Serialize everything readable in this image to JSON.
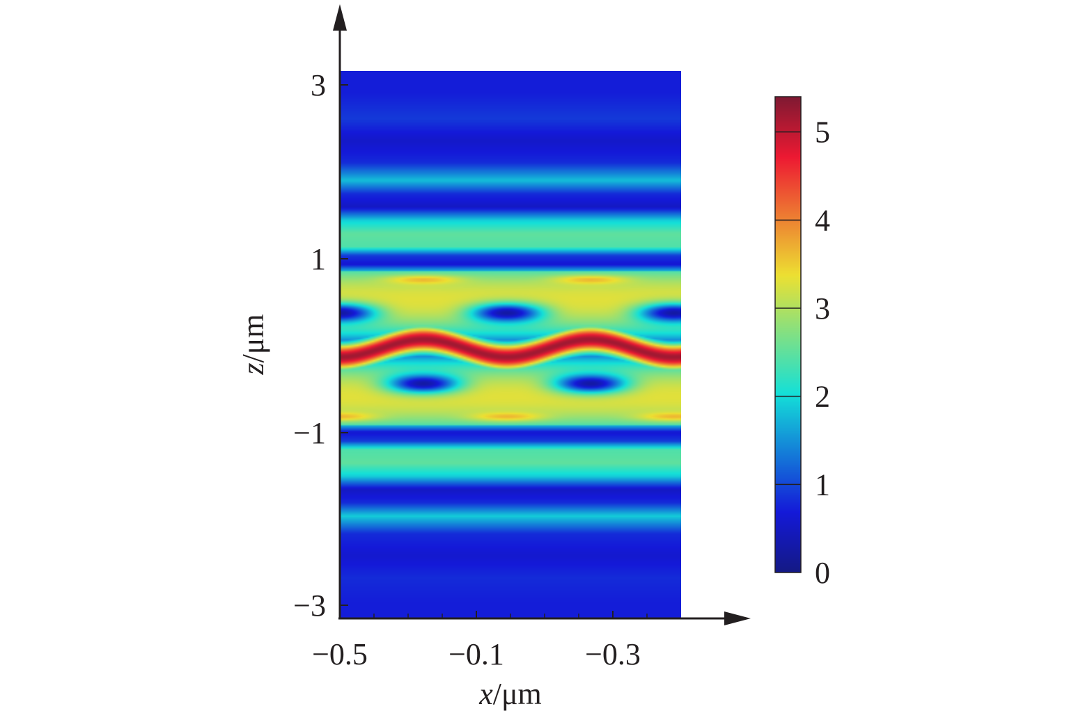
{
  "chart_data": {
    "type": "heatmap",
    "title": "",
    "xlabel": {
      "variable": "x",
      "unit": "/μm"
    },
    "ylabel": {
      "variable": "z",
      "unit": "/μm"
    },
    "x_ticks": [
      {
        "value": 0,
        "label": "−0.5"
      },
      {
        "value": 1,
        "label": "−0.1"
      },
      {
        "value": 2,
        "label": "−0.3"
      }
    ],
    "x_range": [
      0,
      2.5
    ],
    "y_ticks": [
      {
        "value": 3,
        "label": "3"
      },
      {
        "value": 1,
        "label": "1"
      },
      {
        "value": -1,
        "label": "−1"
      },
      {
        "value": -3,
        "label": "−3"
      }
    ],
    "y_range": [
      -3.06,
      3.14
    ],
    "colorbar": {
      "range": [
        0,
        5.4
      ],
      "ticks": [
        {
          "value": 0,
          "label": "0"
        },
        {
          "value": 1,
          "label": "1"
        },
        {
          "value": 2,
          "label": "2"
        },
        {
          "value": 3,
          "label": "3"
        },
        {
          "value": 4,
          "label": "4"
        },
        {
          "value": 5,
          "label": "5"
        }
      ],
      "colormap": "jet"
    },
    "field_description": "Intensity is uniform along x outside |z|<0.9 (horizontal bands) and periodic along x inside (high-intensity undulating core near z=0 with low-intensity lobes above and below).",
    "z_profile_uniform": [
      {
        "z": 3.14,
        "v": 0.7
      },
      {
        "z": 2.9,
        "v": 0.7
      },
      {
        "z": 2.6,
        "v": 0.9
      },
      {
        "z": 2.35,
        "v": 0.55
      },
      {
        "z": 2.1,
        "v": 0.8
      },
      {
        "z": 1.9,
        "v": 1.8
      },
      {
        "z": 1.75,
        "v": 0.8
      },
      {
        "z": 1.6,
        "v": 0.5
      },
      {
        "z": 1.45,
        "v": 1.9
      },
      {
        "z": 1.3,
        "v": 2.5
      },
      {
        "z": 1.15,
        "v": 2.4
      },
      {
        "z": 1.05,
        "v": 0.9
      },
      {
        "z": 0.95,
        "v": 0.6
      },
      {
        "z": 0.87,
        "v": 1.8
      },
      {
        "z": 0.87,
        "v": 1.8
      },
      {
        "z": -0.87,
        "v": 1.8
      },
      {
        "z": -0.95,
        "v": 0.6
      },
      {
        "z": -1.05,
        "v": 0.9
      },
      {
        "z": -1.15,
        "v": 2.4
      },
      {
        "z": -1.3,
        "v": 2.5
      },
      {
        "z": -1.45,
        "v": 1.9
      },
      {
        "z": -1.6,
        "v": 0.5
      },
      {
        "z": -1.75,
        "v": 0.8
      },
      {
        "z": -1.9,
        "v": 1.9
      },
      {
        "z": -2.1,
        "v": 0.8
      },
      {
        "z": -2.35,
        "v": 0.6
      },
      {
        "z": -2.6,
        "v": 0.8
      },
      {
        "z": -2.9,
        "v": 0.7
      },
      {
        "z": -3.06,
        "v": 0.7
      }
    ]
  }
}
